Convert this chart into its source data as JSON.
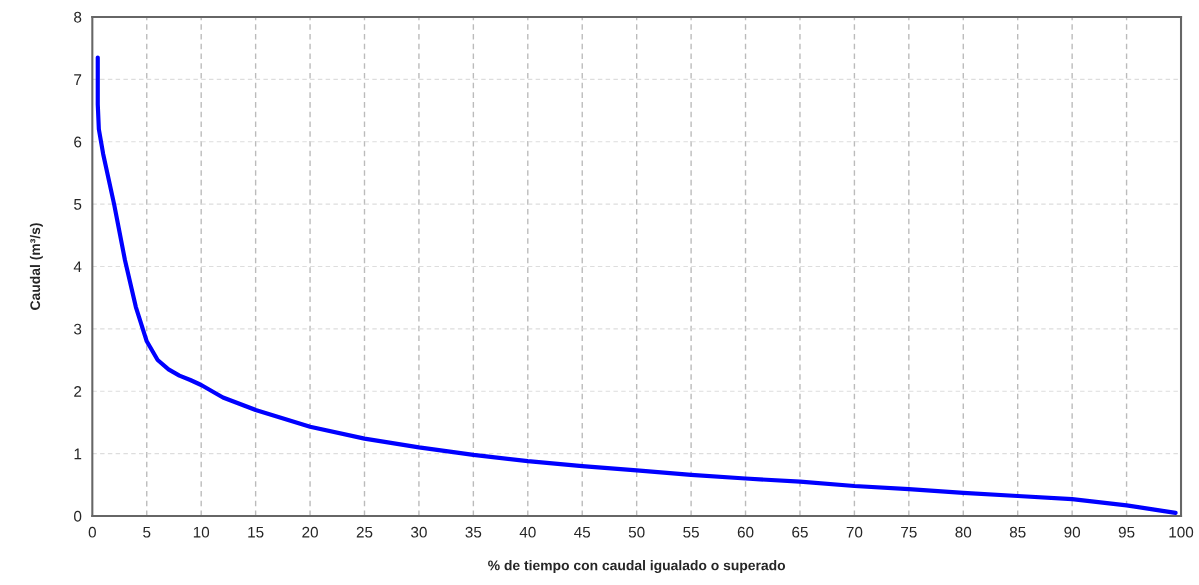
{
  "chart_data": {
    "type": "line",
    "xlabel": "% de tiempo con caudal igualado o superado",
    "ylabel": "Caudal (m³/s)",
    "x": [
      0.5,
      0.5,
      0.6,
      1,
      2,
      3,
      4,
      5,
      6,
      7,
      8,
      9,
      10,
      12,
      15,
      20,
      25,
      30,
      35,
      40,
      45,
      50,
      55,
      60,
      65,
      70,
      75,
      80,
      85,
      90,
      95,
      98,
      99.5
    ],
    "series": [
      {
        "color": "#0000ff",
        "values": [
          7.35,
          6.6,
          6.2,
          5.8,
          5.0,
          4.1,
          3.35,
          2.8,
          2.5,
          2.35,
          2.25,
          2.18,
          2.1,
          1.9,
          1.7,
          1.43,
          1.24,
          1.1,
          0.98,
          0.88,
          0.8,
          0.73,
          0.66,
          0.6,
          0.55,
          0.48,
          0.43,
          0.37,
          0.32,
          0.27,
          0.17,
          0.09,
          0.05
        ]
      }
    ],
    "xlim": [
      0,
      100
    ],
    "xticks": [
      0,
      5,
      10,
      15,
      20,
      25,
      30,
      35,
      40,
      45,
      50,
      55,
      60,
      65,
      70,
      75,
      80,
      85,
      90,
      95,
      100
    ],
    "ylim": [
      0,
      8
    ],
    "yticks": [
      0,
      1,
      2,
      3,
      4,
      5,
      6,
      7,
      8
    ],
    "grid": true,
    "marker": "none",
    "line_style": "solid"
  }
}
